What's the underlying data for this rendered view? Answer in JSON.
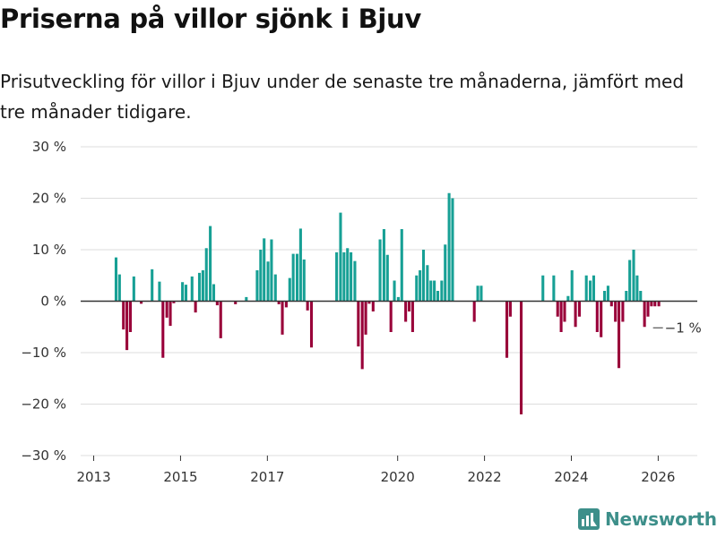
{
  "title": "Priserna på villor sjönk i Bjuv",
  "subtitle": "Prisutveckling för villor i Bjuv under de senaste tre månaderna, jämfört med tre månader tidigare.",
  "brand": {
    "name": "Newsworthy",
    "icon": "newsworthy-logo-icon"
  },
  "colors": {
    "positive": "#17a095",
    "negative": "#990039",
    "grid": "#dddddd",
    "zero": "#333333"
  },
  "chart_data": {
    "type": "bar",
    "title": "Priserna på villor sjönk i Bjuv",
    "xlabel": "",
    "ylabel": "",
    "ylim": [
      -30,
      30
    ],
    "y_ticks": [
      30,
      20,
      10,
      0,
      -10,
      -20,
      -30
    ],
    "y_tick_labels": [
      "30 %",
      "20 %",
      "10 %",
      "0 %",
      "−10 %",
      "−20 %",
      "−30 %"
    ],
    "x_range": [
      2012.7,
      2026.9
    ],
    "x_ticks": [
      2013,
      2015,
      2017,
      2020,
      2022,
      2024,
      2026
    ],
    "x_tick_labels": [
      "2013",
      "2015",
      "2017",
      "2020",
      "2022",
      "2024",
      "2026"
    ],
    "bar_width_years": 0.074,
    "annotation": {
      "text": "−1 %",
      "x": 2026.15,
      "y": -1
    },
    "series": [
      {
        "name": "Prisutveckling",
        "points": [
          {
            "x": 2013.52,
            "y": 8.5
          },
          {
            "x": 2013.6,
            "y": 5.2
          },
          {
            "x": 2013.69,
            "y": -5.5
          },
          {
            "x": 2013.77,
            "y": -9.5
          },
          {
            "x": 2013.85,
            "y": -6
          },
          {
            "x": 2013.93,
            "y": 4.8
          },
          {
            "x": 2014.1,
            "y": -0.5
          },
          {
            "x": 2014.35,
            "y": 6.2
          },
          {
            "x": 2014.52,
            "y": 3.8
          },
          {
            "x": 2014.6,
            "y": -11
          },
          {
            "x": 2014.69,
            "y": -3.2
          },
          {
            "x": 2014.77,
            "y": -4.8
          },
          {
            "x": 2014.85,
            "y": -0.4
          },
          {
            "x": 2015.05,
            "y": 3.7
          },
          {
            "x": 2015.13,
            "y": 3.2
          },
          {
            "x": 2015.27,
            "y": 4.8
          },
          {
            "x": 2015.35,
            "y": -2.2
          },
          {
            "x": 2015.44,
            "y": 5.5
          },
          {
            "x": 2015.52,
            "y": 6
          },
          {
            "x": 2015.6,
            "y": 10.3
          },
          {
            "x": 2015.69,
            "y": 14.6
          },
          {
            "x": 2015.77,
            "y": 3.3
          },
          {
            "x": 2015.85,
            "y": -0.8
          },
          {
            "x": 2015.93,
            "y": -7.2
          },
          {
            "x": 2016.27,
            "y": -0.6
          },
          {
            "x": 2016.52,
            "y": 0.8
          },
          {
            "x": 2016.77,
            "y": 6
          },
          {
            "x": 2016.85,
            "y": 10
          },
          {
            "x": 2016.93,
            "y": 12.2
          },
          {
            "x": 2017.02,
            "y": 7.7
          },
          {
            "x": 2017.1,
            "y": 12
          },
          {
            "x": 2017.19,
            "y": 5.2
          },
          {
            "x": 2017.27,
            "y": -0.6
          },
          {
            "x": 2017.35,
            "y": -6.5
          },
          {
            "x": 2017.44,
            "y": -1.2
          },
          {
            "x": 2017.52,
            "y": 4.5
          },
          {
            "x": 2017.6,
            "y": 9.2
          },
          {
            "x": 2017.69,
            "y": 9.2
          },
          {
            "x": 2017.77,
            "y": 14.1
          },
          {
            "x": 2017.85,
            "y": 8.1
          },
          {
            "x": 2017.93,
            "y": -1.8
          },
          {
            "x": 2018.02,
            "y": -9
          },
          {
            "x": 2018.6,
            "y": 9.5
          },
          {
            "x": 2018.69,
            "y": 17.2
          },
          {
            "x": 2018.77,
            "y": 9.5
          },
          {
            "x": 2018.85,
            "y": 10.3
          },
          {
            "x": 2018.93,
            "y": 9.5
          },
          {
            "x": 2019.02,
            "y": 7.8
          },
          {
            "x": 2019.1,
            "y": -8.8
          },
          {
            "x": 2019.19,
            "y": -13.2
          },
          {
            "x": 2019.27,
            "y": -6.5
          },
          {
            "x": 2019.35,
            "y": -0.5
          },
          {
            "x": 2019.44,
            "y": -2
          },
          {
            "x": 2019.6,
            "y": 12
          },
          {
            "x": 2019.69,
            "y": 14
          },
          {
            "x": 2019.77,
            "y": 9
          },
          {
            "x": 2019.85,
            "y": -6
          },
          {
            "x": 2019.93,
            "y": 4
          },
          {
            "x": 2020.02,
            "y": 0.8
          },
          {
            "x": 2020.1,
            "y": 14
          },
          {
            "x": 2020.19,
            "y": -4
          },
          {
            "x": 2020.27,
            "y": -2
          },
          {
            "x": 2020.35,
            "y": -6
          },
          {
            "x": 2020.44,
            "y": 5
          },
          {
            "x": 2020.52,
            "y": 6
          },
          {
            "x": 2020.6,
            "y": 10
          },
          {
            "x": 2020.69,
            "y": 7
          },
          {
            "x": 2020.77,
            "y": 4
          },
          {
            "x": 2020.85,
            "y": 4
          },
          {
            "x": 2020.93,
            "y": 2
          },
          {
            "x": 2021.02,
            "y": 4
          },
          {
            "x": 2021.1,
            "y": 11
          },
          {
            "x": 2021.19,
            "y": 21
          },
          {
            "x": 2021.27,
            "y": 20
          },
          {
            "x": 2021.77,
            "y": -4
          },
          {
            "x": 2021.85,
            "y": 3
          },
          {
            "x": 2021.93,
            "y": 3
          },
          {
            "x": 2022.52,
            "y": -11
          },
          {
            "x": 2022.6,
            "y": -3
          },
          {
            "x": 2022.85,
            "y": -22
          },
          {
            "x": 2023.35,
            "y": 5
          },
          {
            "x": 2023.6,
            "y": 5
          },
          {
            "x": 2023.69,
            "y": -3
          },
          {
            "x": 2023.77,
            "y": -6
          },
          {
            "x": 2023.85,
            "y": -4
          },
          {
            "x": 2023.93,
            "y": 1
          },
          {
            "x": 2024.02,
            "y": 6
          },
          {
            "x": 2024.1,
            "y": -5
          },
          {
            "x": 2024.19,
            "y": -3
          },
          {
            "x": 2024.35,
            "y": 5
          },
          {
            "x": 2024.44,
            "y": 4
          },
          {
            "x": 2024.52,
            "y": 5
          },
          {
            "x": 2024.6,
            "y": -6
          },
          {
            "x": 2024.69,
            "y": -7
          },
          {
            "x": 2024.77,
            "y": 2
          },
          {
            "x": 2024.85,
            "y": 3
          },
          {
            "x": 2024.93,
            "y": -1
          },
          {
            "x": 2025.02,
            "y": -4
          },
          {
            "x": 2025.1,
            "y": -13
          },
          {
            "x": 2025.19,
            "y": -4
          },
          {
            "x": 2025.27,
            "y": 2
          },
          {
            "x": 2025.35,
            "y": 8
          },
          {
            "x": 2025.44,
            "y": 10
          },
          {
            "x": 2025.52,
            "y": 5
          },
          {
            "x": 2025.6,
            "y": 2
          },
          {
            "x": 2025.69,
            "y": -5
          },
          {
            "x": 2025.77,
            "y": -3
          },
          {
            "x": 2025.85,
            "y": -1
          },
          {
            "x": 2025.93,
            "y": -1
          },
          {
            "x": 2026.02,
            "y": -1
          }
        ]
      }
    ]
  }
}
